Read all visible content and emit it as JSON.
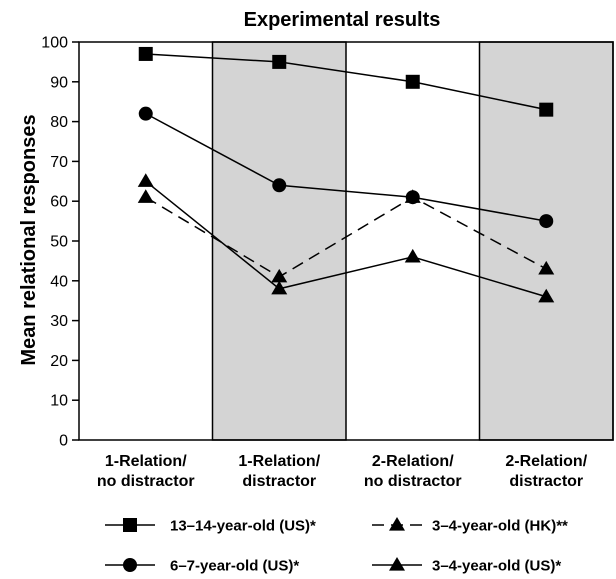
{
  "chart_data": {
    "type": "line",
    "title": "Experimental results",
    "xlabel": "",
    "ylabel": "Mean relational responses",
    "ylim": [
      0,
      100
    ],
    "yticks": [
      0,
      10,
      20,
      30,
      40,
      50,
      60,
      70,
      80,
      90,
      100
    ],
    "categories": [
      [
        "1-Relation/",
        "no distractor"
      ],
      [
        "1-Relation/",
        "distractor"
      ],
      [
        "2-Relation/",
        "no distractor"
      ],
      [
        "2-Relation/",
        "distractor"
      ]
    ],
    "shaded_categories": [
      1,
      3
    ],
    "grid": false,
    "legend_position": "bottom",
    "series": [
      {
        "name": "13–14-year-old (US)*",
        "marker": "square",
        "line": "solid",
        "values": [
          97,
          95,
          90,
          83
        ]
      },
      {
        "name": "6–7-year-old (US)*",
        "marker": "circle",
        "line": "solid",
        "values": [
          82,
          64,
          61,
          55
        ]
      },
      {
        "name": "3–4-year-old (HK)**",
        "marker": "triangle",
        "line": "dashed",
        "values": [
          61,
          41,
          61,
          43
        ]
      },
      {
        "name": "3–4-year-old (US)*",
        "marker": "triangle",
        "line": "solid",
        "values": [
          65,
          38,
          46,
          36
        ]
      }
    ],
    "legend_order": [
      0,
      2,
      1,
      3
    ]
  },
  "colors": {
    "shade": "#d4d4d4",
    "ink": "#000000"
  }
}
